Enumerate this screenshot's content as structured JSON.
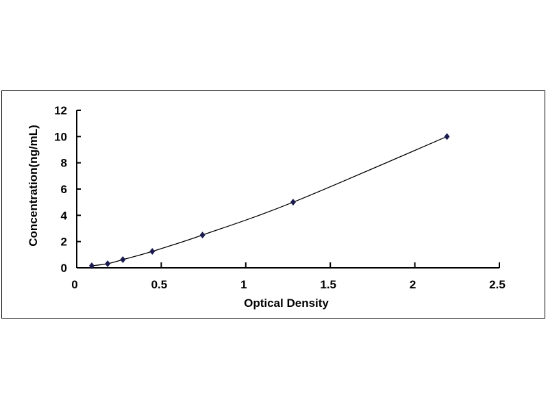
{
  "chart_data": {
    "type": "scatter",
    "title": "",
    "xlabel": "Optical Density",
    "ylabel": "Concentration(ng/mL)",
    "xlim": [
      0,
      2.5
    ],
    "ylim": [
      0,
      12
    ],
    "xticks": [
      "0",
      "0.5",
      "1",
      "1.5",
      "2",
      "2.5"
    ],
    "yticks": [
      "0",
      "2",
      "4",
      "6",
      "8",
      "10",
      "12"
    ],
    "grid": false,
    "legend": "none",
    "marker_color": "#1a1a4e",
    "line_color": "#000000",
    "series": [
      {
        "x": [
          0.089,
          0.183,
          0.273,
          0.447,
          0.744,
          1.28,
          2.19
        ],
        "y": [
          0.156,
          0.312,
          0.625,
          1.25,
          2.5,
          5,
          10
        ]
      }
    ]
  }
}
